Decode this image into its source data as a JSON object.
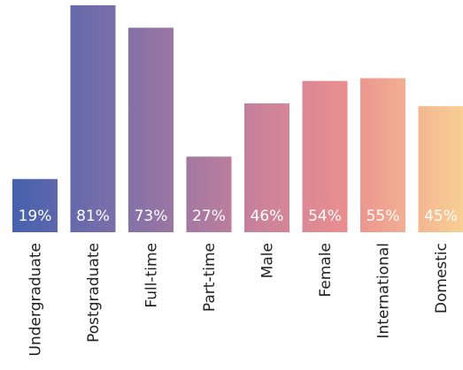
{
  "chart_data": {
    "type": "bar",
    "categories": [
      "Undergraduate",
      "Postgraduate",
      "Full-time",
      "Part-time",
      "Male",
      "Female",
      "International",
      "Domestic"
    ],
    "values": [
      19,
      81,
      73,
      27,
      46,
      54,
      55,
      45
    ],
    "value_labels": [
      "19%",
      "81%",
      "73%",
      "27%",
      "46%",
      "54%",
      "55%",
      "45%"
    ],
    "ylim": [
      0,
      81
    ],
    "grid": false,
    "colors": [
      "#4a62ae",
      "#6d68ac",
      "#8e73a6",
      "#a9789f",
      "#c47f98",
      "#dd8a95",
      "#eca092",
      "#f7c996"
    ]
  }
}
